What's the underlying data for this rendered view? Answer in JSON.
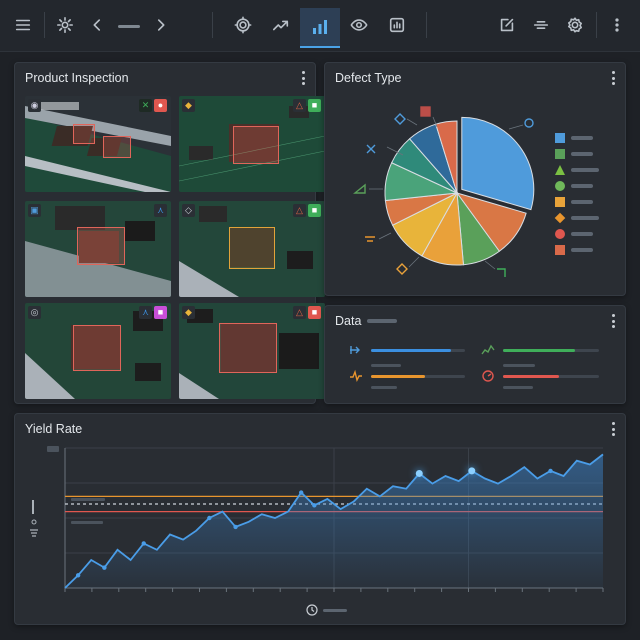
{
  "toolbar": {
    "items": [
      "menu-icon",
      "gear-icon",
      "chevron-left-icon",
      "chevron-right-icon",
      "settings-icon",
      "trend-icon",
      "bar-chart-icon",
      "eye-icon",
      "report-icon",
      "edit-icon",
      "filter-icon",
      "settings-icon",
      "more-icon"
    ],
    "active": "bar-chart-icon"
  },
  "inspection": {
    "title": "Product Inspection",
    "tiles": [
      {
        "status": "fail",
        "badge_colors": [
          "#3fae5a",
          "#e0574f"
        ]
      },
      {
        "status": "fail",
        "badge_colors": [
          "#e06545",
          "#3fae5a"
        ]
      },
      {
        "status": "fail",
        "badge_colors": [
          "#3b8fe0"
        ]
      },
      {
        "status": "warn",
        "badge_colors": [
          "#e06545",
          "#3fae5a"
        ]
      },
      {
        "status": "fail",
        "badge_colors": [
          "#3b8fe0",
          "#c84fd8"
        ]
      },
      {
        "status": "fail",
        "badge_colors": [
          "#e06545",
          "#e0574f"
        ]
      }
    ]
  },
  "defect_type": {
    "title": "Defect Type"
  },
  "data_panel": {
    "title": "Data",
    "metrics": [
      {
        "icon": "flow-icon",
        "color": "#3b8fe0",
        "progress": 0.85
      },
      {
        "icon": "activity-icon",
        "color": "#3fae5a",
        "progress": 0.75
      },
      {
        "icon": "pulse-icon",
        "color": "#e8952e",
        "progress": 0.57
      },
      {
        "icon": "gauge-icon",
        "color": "#e0574f",
        "progress": 0.58
      }
    ]
  },
  "yield": {
    "title": "Yield Rate",
    "footer_icon": "clock-icon"
  },
  "chart_data": [
    {
      "type": "pie",
      "title": "Defect Type",
      "values": [
        31,
        11,
        9,
        10,
        10,
        6,
        9,
        7,
        7,
        5
      ],
      "colors": [
        "#4f9bdb",
        "#d97745",
        "#5aa05a",
        "#e9a13a",
        "#e8b43a",
        "#d97745",
        "#4aa37a",
        "#2f8a7a",
        "#2f6a9a",
        "#d96a4a"
      ]
    },
    {
      "type": "area",
      "title": "Yield Rate",
      "x": [
        0,
        1,
        2,
        3,
        4,
        5,
        6,
        7,
        8,
        9,
        10,
        11,
        12,
        13,
        14,
        15,
        16,
        17,
        18,
        19,
        20,
        21,
        22,
        23,
        24,
        25,
        26,
        27,
        28,
        29,
        30,
        31,
        32,
        33,
        34,
        35,
        36,
        37,
        38,
        39,
        40,
        41
      ],
      "y": [
        0,
        10,
        22,
        16,
        30,
        22,
        35,
        30,
        42,
        38,
        45,
        55,
        60,
        48,
        52,
        58,
        55,
        60,
        75,
        65,
        70,
        62,
        68,
        78,
        72,
        80,
        78,
        90,
        82,
        88,
        84,
        92,
        86,
        82,
        88,
        95,
        86,
        92,
        88,
        100,
        97,
        105
      ],
      "ylim": [
        0,
        110
      ],
      "reference_lines": [
        {
          "value": 60,
          "color": "#e0574f"
        },
        {
          "value": 66,
          "color": "#cfd4da"
        },
        {
          "value": 72,
          "color": "#e8952e"
        }
      ]
    }
  ]
}
